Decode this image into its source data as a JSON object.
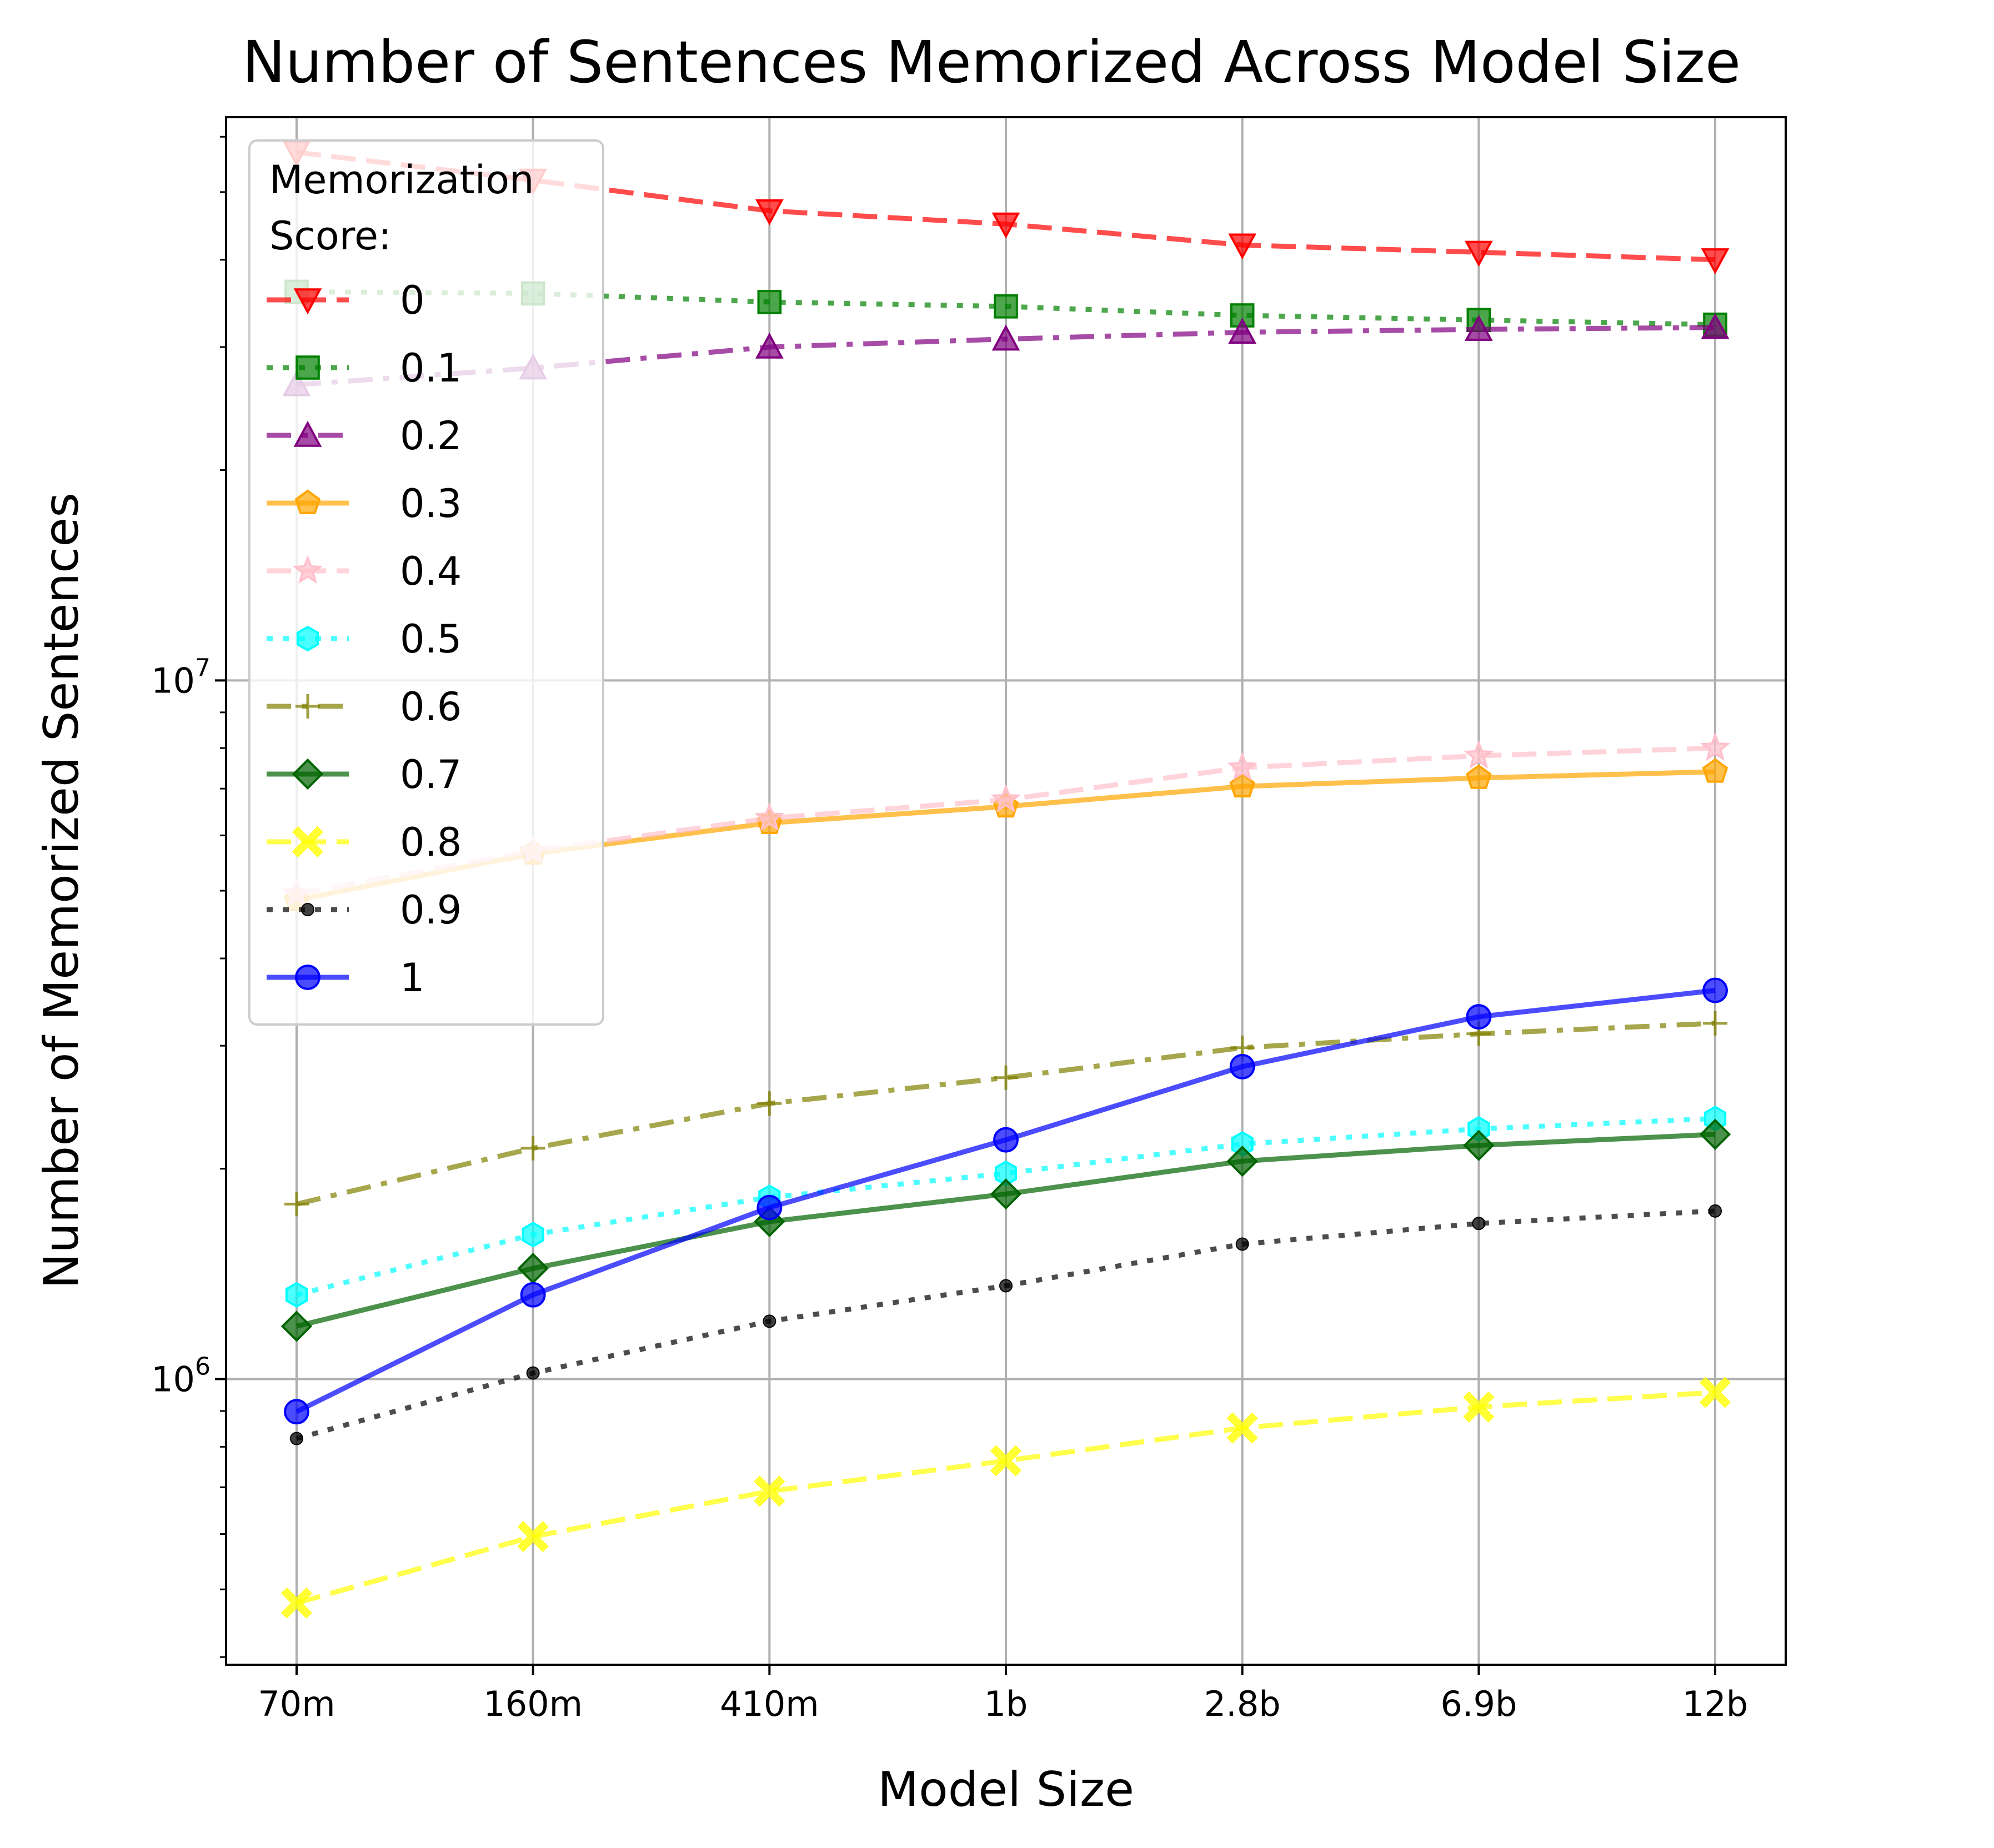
{
  "chart_data": {
    "type": "line",
    "title": "Number of Sentences Memorized Across Model Size",
    "xlabel": "Model Size",
    "ylabel": "Number of Memorized Sentences",
    "yscale": "log",
    "ylim": [
      390000,
      64000000
    ],
    "grid": true,
    "legend_title": "Memorization Score:",
    "legend_title_lines": [
      "Memorization",
      "Score:"
    ],
    "legend_position": "upper-left",
    "categories": [
      "70m",
      "160m",
      "410m",
      "1b",
      "2.8b",
      "6.9b",
      "12b"
    ],
    "y_major_ticks": [
      {
        "value": 1000000,
        "label": "10^6"
      },
      {
        "value": 10000000,
        "label": "10^7"
      }
    ],
    "series": [
      {
        "name": "0",
        "color": "#ff0000",
        "dash": "dashed",
        "marker": "triangle-down",
        "values": [
          57000000,
          52000000,
          47000000,
          45000000,
          42000000,
          41000000,
          40000000
        ]
      },
      {
        "name": "0.1",
        "color": "#008000",
        "dash": "dotted",
        "marker": "square",
        "values": [
          36000000,
          35800000,
          34800000,
          34300000,
          33300000,
          32800000,
          32300000
        ]
      },
      {
        "name": "0.2",
        "color": "#800080",
        "dash": "dashdot",
        "marker": "triangle-up",
        "values": [
          26500000,
          28000000,
          30000000,
          30800000,
          31500000,
          31800000,
          32000000
        ]
      },
      {
        "name": "0.3",
        "color": "#ffa500",
        "dash": "solid",
        "marker": "pentagon",
        "values": [
          4850000,
          5650000,
          6250000,
          6600000,
          7050000,
          7250000,
          7400000
        ]
      },
      {
        "name": "0.4",
        "color": "#ffc0cb",
        "dash": "dashed",
        "marker": "star",
        "values": [
          4950000,
          5700000,
          6350000,
          6750000,
          7500000,
          7800000,
          8000000
        ]
      },
      {
        "name": "0.5",
        "color": "#00ffff",
        "dash": "dotted",
        "marker": "hexagon",
        "values": [
          1320000,
          1610000,
          1820000,
          1970000,
          2170000,
          2280000,
          2360000
        ]
      },
      {
        "name": "0.6",
        "color": "#808000",
        "dash": "dashdot",
        "marker": "plus",
        "values": [
          1780000,
          2140000,
          2480000,
          2700000,
          2980000,
          3120000,
          3230000
        ]
      },
      {
        "name": "0.7",
        "color": "#006400",
        "dash": "solid",
        "marker": "diamond",
        "values": [
          1190000,
          1440000,
          1680000,
          1840000,
          2050000,
          2160000,
          2240000
        ]
      },
      {
        "name": "0.8",
        "color": "#ffff00",
        "dash": "dashed",
        "marker": "x-filled",
        "values": [
          478000,
          595000,
          691000,
          764000,
          851000,
          912000,
          957000
        ]
      },
      {
        "name": "0.9",
        "color": "#000000",
        "dash": "dotted",
        "marker": "point",
        "values": [
          822000,
          1020000,
          1210000,
          1360000,
          1560000,
          1670000,
          1740000
        ]
      },
      {
        "name": "1",
        "color": "#0000ff",
        "dash": "solid",
        "marker": "circle",
        "values": [
          898000,
          1320000,
          1760000,
          2200000,
          2800000,
          3300000,
          3600000
        ]
      }
    ]
  }
}
